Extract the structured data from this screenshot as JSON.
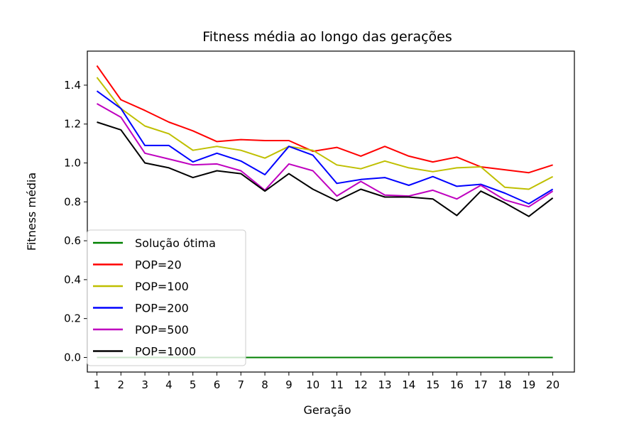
{
  "chart_data": {
    "type": "line",
    "title": "Fitness média ao longo das gerações",
    "xlabel": "Geração",
    "ylabel": "Fitness média",
    "x": [
      1,
      2,
      3,
      4,
      5,
      6,
      7,
      8,
      9,
      10,
      11,
      12,
      13,
      14,
      15,
      16,
      17,
      18,
      19,
      20
    ],
    "xlim": [
      0.6,
      20.9
    ],
    "ylim": [
      -0.075,
      1.575
    ],
    "yticks": [
      0.0,
      0.2,
      0.4,
      0.6,
      0.8,
      1.0,
      1.2,
      1.4
    ],
    "grid": false,
    "legend_position": "lower-left",
    "series": [
      {
        "name": "Solução ótima",
        "color": "#008000",
        "values": [
          0,
          0,
          0,
          0,
          0,
          0,
          0,
          0,
          0,
          0,
          0,
          0,
          0,
          0,
          0,
          0,
          0,
          0,
          0,
          0
        ]
      },
      {
        "name": "POP=20",
        "color": "#ff0000",
        "values": [
          1.5,
          1.325,
          1.27,
          1.21,
          1.165,
          1.11,
          1.12,
          1.115,
          1.115,
          1.06,
          1.08,
          1.035,
          1.085,
          1.035,
          1.005,
          1.03,
          0.98,
          0.965,
          0.95,
          0.99
        ]
      },
      {
        "name": "POP=100",
        "color": "#bfbf00",
        "values": [
          1.44,
          1.28,
          1.19,
          1.15,
          1.065,
          1.085,
          1.065,
          1.025,
          1.085,
          1.065,
          0.99,
          0.97,
          1.01,
          0.975,
          0.955,
          0.975,
          0.98,
          0.875,
          0.865,
          0.93
        ]
      },
      {
        "name": "POP=200",
        "color": "#0000ff",
        "values": [
          1.37,
          1.28,
          1.09,
          1.09,
          1.005,
          1.05,
          1.01,
          0.94,
          1.085,
          1.04,
          0.895,
          0.915,
          0.925,
          0.885,
          0.93,
          0.88,
          0.89,
          0.845,
          0.79,
          0.865
        ]
      },
      {
        "name": "POP=500",
        "color": "#bf00bf",
        "values": [
          1.305,
          1.235,
          1.05,
          1.02,
          0.99,
          0.995,
          0.96,
          0.86,
          0.995,
          0.96,
          0.83,
          0.905,
          0.835,
          0.83,
          0.86,
          0.815,
          0.885,
          0.81,
          0.775,
          0.855
        ]
      },
      {
        "name": "POP=1000",
        "color": "#000000",
        "values": [
          1.21,
          1.17,
          1.0,
          0.975,
          0.925,
          0.96,
          0.945,
          0.855,
          0.945,
          0.865,
          0.805,
          0.865,
          0.825,
          0.825,
          0.815,
          0.73,
          0.855,
          0.795,
          0.725,
          0.82
        ]
      }
    ]
  }
}
